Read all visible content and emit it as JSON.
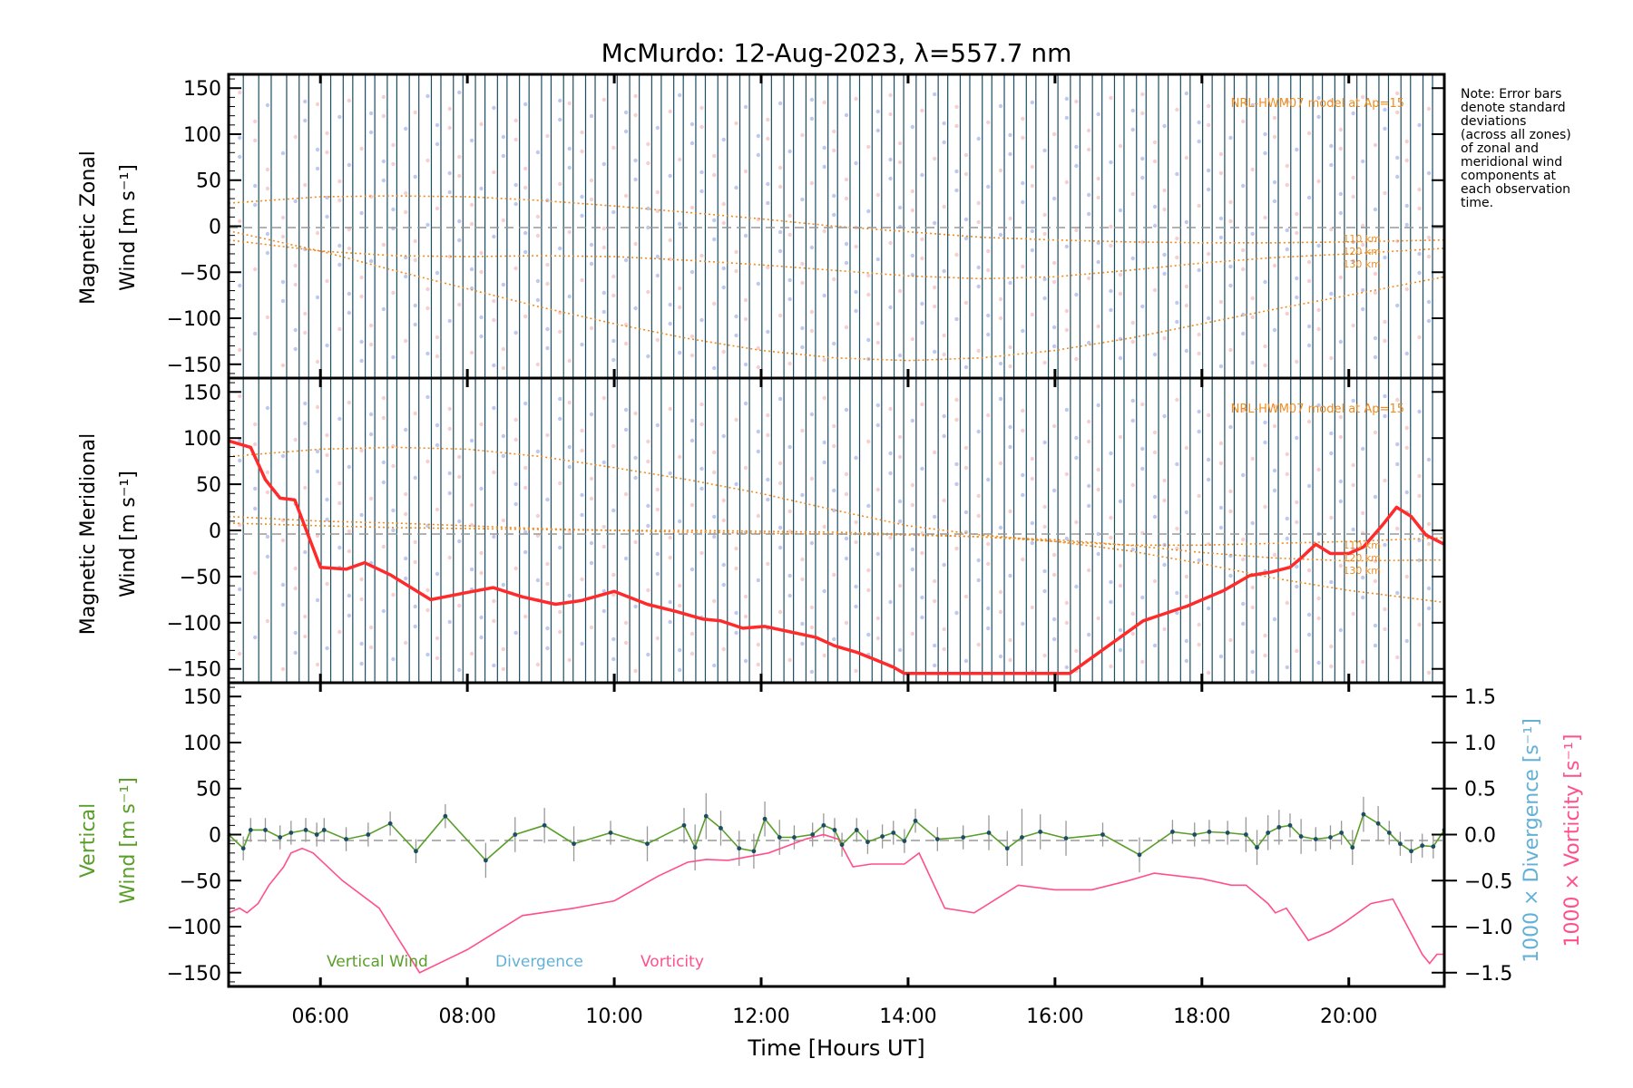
{
  "title": "McMurdo: 12-Aug-2023, λ=557.7 nm",
  "note_lines": [
    "Note: Error bars",
    "denote standard",
    "deviations",
    "(across all zones)",
    "of zonal and",
    "meridional wind",
    "components at",
    "each observation",
    "time."
  ],
  "colors": {
    "axis": "#000000",
    "obs_line": "#1c4d63",
    "model": "#f08c1e",
    "meridional": "#ff2a2a",
    "vertical": "#5a9e2a",
    "divergence": "#63b1d6",
    "vorticity": "#ff4f8c",
    "zero_line": "#999999",
    "error_bar": "#999999",
    "scatter_a": "#8c9ae0",
    "scatter_b": "#f0a8a8"
  },
  "chart_data": [
    {
      "type": "line",
      "panel": "zonal",
      "ylabel_lines": [
        "Magnetic Zonal",
        "Wind [m s⁻¹]"
      ],
      "ylim": [
        -165,
        165
      ],
      "yticks": [
        -150,
        -100,
        -50,
        0,
        50,
        100,
        150
      ],
      "xlim": [
        4.75,
        21.3
      ],
      "model_label": "NRL-HWM07 model at Ap=15",
      "model_curves": [
        {
          "name": "110 km",
          "x": [
            4.75,
            6,
            7,
            8,
            9,
            10,
            11,
            12,
            13,
            14,
            15,
            16,
            17,
            18,
            19,
            20,
            21.3
          ],
          "y": [
            25,
            32,
            33,
            32,
            28,
            22,
            15,
            8,
            0,
            -6,
            -12,
            -15,
            -17,
            -18,
            -18,
            -17,
            -15
          ]
        },
        {
          "name": "120 km",
          "x": [
            4.75,
            6,
            7,
            8,
            9,
            10,
            11,
            12,
            13,
            14,
            15,
            16,
            17,
            18,
            19,
            20,
            21.3
          ],
          "y": [
            -15,
            -27,
            -32,
            -33,
            -32,
            -33,
            -37,
            -42,
            -48,
            -54,
            -57,
            -55,
            -48,
            -40,
            -34,
            -30,
            -24
          ]
        },
        {
          "name": "130 km",
          "x": [
            4.75,
            6,
            7,
            8,
            9,
            10,
            11,
            12,
            13,
            14,
            15,
            16,
            17,
            18,
            19,
            20,
            21.3
          ],
          "y": [
            -5,
            -27,
            -48,
            -68,
            -88,
            -106,
            -122,
            -135,
            -143,
            -146,
            -143,
            -135,
            -122,
            -106,
            -90,
            -75,
            -55
          ]
        }
      ],
      "model_curve_labels": [
        "110 km",
        "120 km",
        "130 km"
      ]
    },
    {
      "type": "line",
      "panel": "meridional",
      "ylabel_lines": [
        "Magnetic Meridional",
        "Wind [m s⁻¹]"
      ],
      "ylim": [
        -165,
        165
      ],
      "yticks": [
        -150,
        -100,
        -50,
        0,
        50,
        100,
        150
      ],
      "xlim": [
        4.75,
        21.3
      ],
      "model_label": "NRL-HWM07 model at Ap=15",
      "model_curves": [
        {
          "name": "110 km",
          "x": [
            4.75,
            6,
            7,
            8,
            9,
            10,
            11,
            12,
            13,
            14,
            15,
            16,
            17,
            18,
            19,
            20,
            21.3
          ],
          "y": [
            80,
            88,
            90,
            88,
            80,
            68,
            55,
            40,
            22,
            5,
            -5,
            -12,
            -16,
            -16,
            -14,
            -12,
            -8
          ]
        },
        {
          "name": "120 km",
          "x": [
            4.75,
            6,
            7,
            8,
            9,
            10,
            11,
            12,
            13,
            14,
            15,
            16,
            17,
            18,
            19,
            20,
            21.3
          ],
          "y": [
            15,
            10,
            8,
            5,
            2,
            0,
            -2,
            -3,
            -4,
            -5,
            -7,
            -10,
            -16,
            -24,
            -30,
            -33,
            -32
          ]
        },
        {
          "name": "130 km",
          "x": [
            4.75,
            6,
            7,
            8,
            9,
            10,
            11,
            12,
            13,
            14,
            15,
            16,
            17,
            18,
            19,
            20,
            21.3
          ],
          "y": [
            8,
            5,
            3,
            2,
            1,
            0,
            0,
            -1,
            -2,
            -4,
            -7,
            -12,
            -22,
            -36,
            -52,
            -65,
            -78
          ]
        }
      ],
      "model_curve_labels": [
        "110 km",
        "120 km",
        "130 km"
      ],
      "series": [
        {
          "name": "Magnetic Meridional Wind",
          "x": [
            4.75,
            5.05,
            5.25,
            5.45,
            5.65,
            6.0,
            6.35,
            6.6,
            6.95,
            7.5,
            7.95,
            8.35,
            8.75,
            9.2,
            9.55,
            10.0,
            10.45,
            10.85,
            11.2,
            11.45,
            11.75,
            12.05,
            12.4,
            12.75,
            13.0,
            13.3,
            13.55,
            13.8,
            13.95,
            16.2,
            17.2,
            17.8,
            18.3,
            18.65,
            18.95,
            19.2,
            19.35,
            19.55,
            19.75,
            20.0,
            20.2,
            20.45,
            20.65,
            20.85,
            21.05,
            21.3
          ],
          "y": [
            97,
            90,
            55,
            35,
            33,
            -40,
            -42,
            -35,
            -48,
            -75,
            -68,
            -62,
            -72,
            -80,
            -76,
            -66,
            -80,
            -88,
            -96,
            -98,
            -106,
            -104,
            -110,
            -116,
            -125,
            -132,
            -140,
            -148,
            -155,
            -155,
            -98,
            -82,
            -65,
            -49,
            -45,
            -40,
            -30,
            -15,
            -25,
            -25,
            -18,
            5,
            25,
            15,
            -5,
            -15
          ]
        }
      ]
    },
    {
      "type": "line",
      "panel": "vertical",
      "ylabel_lines": [
        "Vertical",
        "Wind [m s⁻¹]"
      ],
      "right_ylabel_divergence": "1000 × Divergence [s⁻¹]",
      "right_ylabel_vorticity": "1000 × Vorticity [s⁻¹]",
      "ylim": [
        -165,
        165
      ],
      "yticks": [
        -150,
        -100,
        -50,
        0,
        50,
        100,
        150
      ],
      "y2lim": [
        -1.65,
        1.65
      ],
      "y2ticks": [
        -1.5,
        -1.0,
        -0.5,
        0.0,
        0.5,
        1.0,
        1.5
      ],
      "y2ticklabels": [
        "−1.5",
        "−1.0",
        "−0.5",
        "0.0",
        "0.5",
        "1.0",
        "1.5"
      ],
      "xlim": [
        4.75,
        21.3
      ],
      "xticks": [
        6,
        8,
        10,
        12,
        14,
        16,
        18,
        20
      ],
      "xticklabels": [
        "06:00",
        "08:00",
        "10:00",
        "12:00",
        "14:00",
        "16:00",
        "18:00",
        "20:00"
      ],
      "xlabel": "Time [Hours UT]",
      "legend": [
        "Vertical Wind",
        "Divergence",
        "Vorticity"
      ],
      "series": [
        {
          "name": "Vertical Wind",
          "x": [
            4.75,
            4.95,
            5.05,
            5.25,
            5.45,
            5.6,
            5.8,
            5.95,
            6.05,
            6.35,
            6.65,
            6.95,
            7.3,
            7.7,
            8.25,
            8.65,
            9.05,
            9.45,
            9.95,
            10.45,
            10.95,
            11.1,
            11.25,
            11.45,
            11.7,
            11.9,
            12.05,
            12.25,
            12.45,
            12.7,
            12.85,
            13.0,
            13.1,
            13.3,
            13.45,
            13.65,
            13.8,
            13.95,
            14.1,
            14.4,
            14.75,
            15.1,
            15.35,
            15.55,
            15.8,
            16.15,
            16.65,
            17.15,
            17.6,
            17.9,
            18.1,
            18.35,
            18.6,
            18.75,
            18.9,
            19.05,
            19.2,
            19.35,
            19.55,
            19.75,
            19.9,
            20.05,
            20.2,
            20.4,
            20.55,
            20.7,
            20.85,
            21.0,
            21.15,
            21.3
          ],
          "y": [
            0,
            -15,
            5,
            5,
            -3,
            2,
            5,
            0,
            5,
            -5,
            0,
            12,
            -18,
            20,
            -28,
            0,
            10,
            -10,
            2,
            -10,
            10,
            -14,
            20,
            7,
            -15,
            -18,
            17,
            -3,
            -3,
            0,
            10,
            5,
            -11,
            5,
            -8,
            -2,
            2,
            -7,
            15,
            -5,
            -3,
            2,
            -15,
            -3,
            3,
            -4,
            0,
            -22,
            3,
            0,
            3,
            2,
            0,
            -14,
            2,
            8,
            10,
            -2,
            -5,
            -3,
            2,
            -14,
            22,
            12,
            2,
            -10,
            -18,
            -12,
            -13,
            5
          ]
        },
        {
          "name": "Vorticity",
          "x": [
            4.75,
            4.9,
            5.0,
            5.15,
            5.3,
            5.5,
            5.6,
            5.75,
            5.9,
            6.3,
            6.8,
            7.35,
            8.0,
            8.75,
            9.45,
            10.0,
            10.6,
            11.0,
            11.25,
            11.55,
            12.1,
            12.6,
            12.85,
            13.05,
            13.25,
            13.5,
            13.95,
            14.15,
            14.5,
            14.9,
            15.5,
            16.0,
            16.5,
            17.0,
            17.35,
            18.0,
            18.4,
            18.6,
            18.9,
            19.0,
            19.15,
            19.45,
            19.75,
            19.95,
            20.3,
            20.6,
            20.8,
            21.0,
            21.1,
            21.2,
            21.3
          ],
          "y": [
            -0.85,
            -0.8,
            -0.85,
            -0.75,
            -0.55,
            -0.35,
            -0.2,
            -0.15,
            -0.2,
            -0.5,
            -0.8,
            -1.5,
            -1.25,
            -0.88,
            -0.8,
            -0.72,
            -0.45,
            -0.3,
            -0.27,
            -0.28,
            -0.2,
            -0.05,
            0.0,
            -0.05,
            -0.35,
            -0.32,
            -0.32,
            -0.2,
            -0.8,
            -0.85,
            -0.55,
            -0.6,
            -0.6,
            -0.5,
            -0.42,
            -0.48,
            -0.55,
            -0.55,
            -0.75,
            -0.85,
            -0.8,
            -1.15,
            -1.05,
            -0.95,
            -0.75,
            -0.7,
            -1.0,
            -1.3,
            -1.4,
            -1.3,
            -1.3
          ]
        }
      ],
      "error_bars": [
        6,
        13,
        13,
        13,
        13,
        13,
        13,
        13,
        13,
        13,
        13,
        13,
        13,
        13,
        19,
        19,
        19,
        19,
        13,
        19,
        19,
        25,
        25,
        19,
        19,
        19,
        19,
        19,
        13,
        13,
        13,
        13,
        13,
        13,
        13,
        13,
        13,
        13,
        13,
        13,
        13,
        19,
        19,
        31,
        19,
        19,
        13,
        19,
        13,
        13,
        13,
        13,
        19,
        19,
        19,
        19,
        13,
        19,
        13,
        13,
        13,
        19,
        19,
        19,
        13,
        13,
        13,
        13,
        13,
        13
      ]
    }
  ]
}
